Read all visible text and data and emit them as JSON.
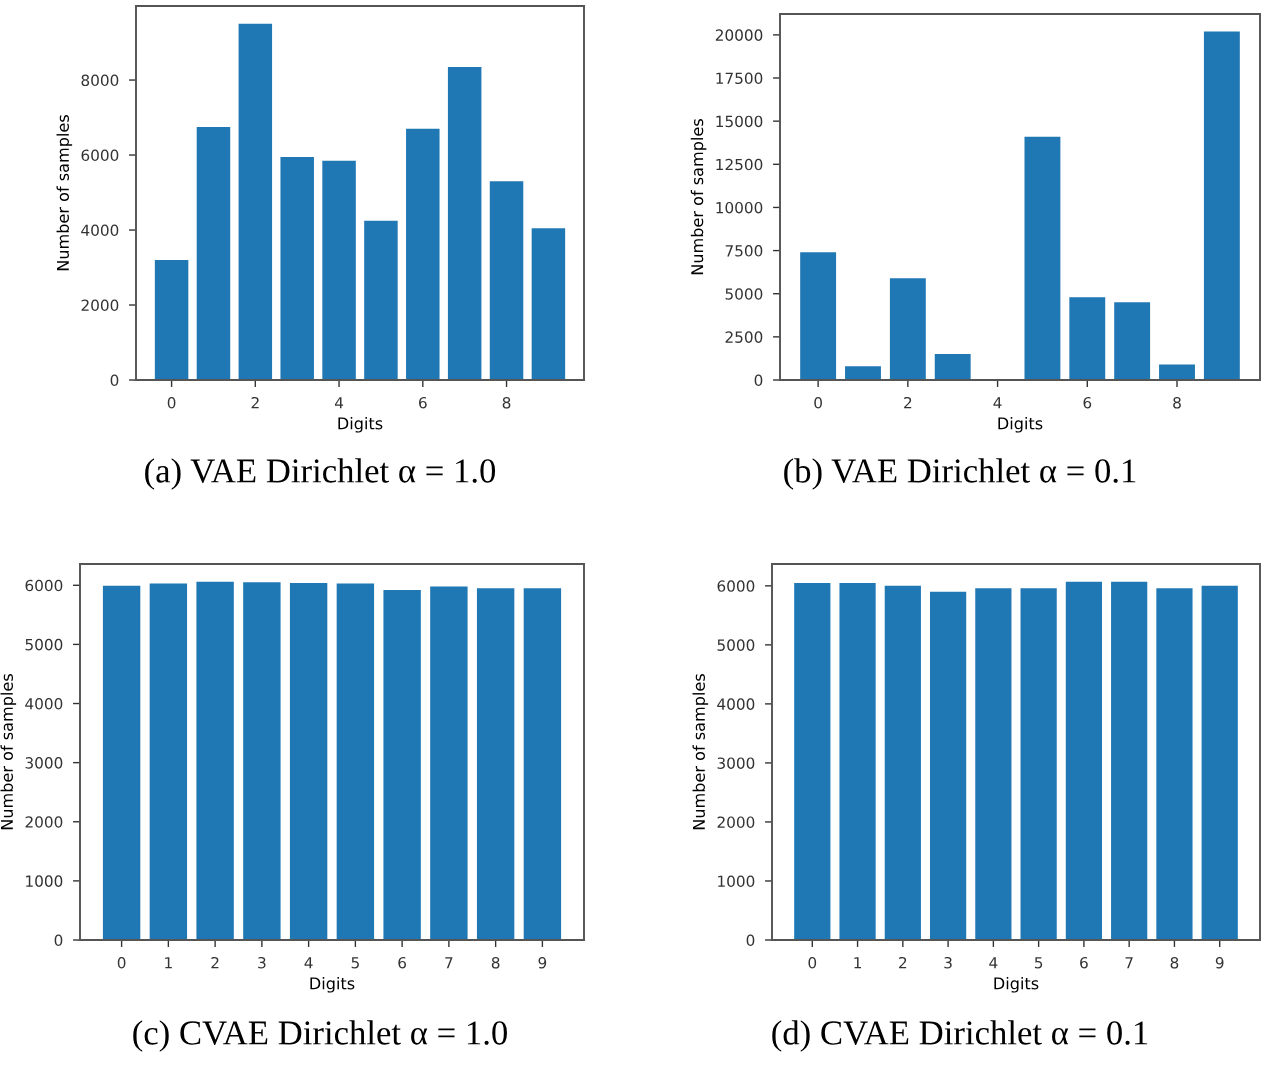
{
  "chart_data": [
    {
      "type": "bar",
      "xlabel": "Digits",
      "ylabel": "Number of samples",
      "annotations": [
        "(a) VAE Dirichlet α = 1.0"
      ],
      "x": [
        0,
        1,
        2,
        3,
        4,
        5,
        6,
        7,
        8,
        9
      ],
      "values": [
        3200,
        6750,
        9500,
        5950,
        5850,
        4250,
        6700,
        8350,
        5300,
        4050
      ],
      "color": "#1f77b4",
      "xlim": [
        -0.85,
        9.85
      ],
      "xticks": [
        0,
        2,
        4,
        6,
        8
      ],
      "ylim": [
        0,
        9975
      ],
      "yticks": [
        0,
        2000,
        4000,
        6000,
        8000
      ],
      "grid": false
    },
    {
      "type": "bar",
      "xlabel": "Digits",
      "ylabel": "Number of samples",
      "annotations": [
        "(b) VAE Dirichlet α = 0.1"
      ],
      "x": [
        0,
        1,
        2,
        3,
        4,
        5,
        6,
        7,
        8,
        9
      ],
      "values": [
        7400,
        800,
        5900,
        1500,
        0,
        14100,
        4800,
        4500,
        900,
        20200
      ],
      "color": "#1f77b4",
      "xlim": [
        -0.85,
        9.85
      ],
      "xticks": [
        0,
        2,
        4,
        6,
        8
      ],
      "ylim": [
        0,
        21210
      ],
      "yticks": [
        0,
        2500,
        5000,
        7500,
        10000,
        12500,
        15000,
        17500,
        20000
      ],
      "grid": false
    },
    {
      "type": "bar",
      "xlabel": "Digits",
      "ylabel": "Number of samples",
      "annotations": [
        "(c) CVAE Dirichlet α = 1.0"
      ],
      "categories": [
        "0",
        "1",
        "2",
        "3",
        "4",
        "5",
        "6",
        "7",
        "8",
        "9"
      ],
      "values": [
        5990,
        6030,
        6060,
        6050,
        6040,
        6030,
        5920,
        5980,
        5950,
        5950
      ],
      "color": "#1f77b4",
      "ylim": [
        0,
        6360
      ],
      "yticks": [
        0,
        1000,
        2000,
        3000,
        4000,
        5000,
        6000
      ],
      "grid": false
    },
    {
      "type": "bar",
      "xlabel": "Digits",
      "ylabel": "Number of samples",
      "annotations": [
        "(d) CVAE Dirichlet α = 0.1"
      ],
      "categories": [
        "0",
        "1",
        "2",
        "3",
        "4",
        "5",
        "6",
        "7",
        "8",
        "9"
      ],
      "values": [
        6050,
        6050,
        6000,
        5900,
        5960,
        5960,
        6070,
        6070,
        5960,
        6000
      ],
      "color": "#1f77b4",
      "ylim": [
        0,
        6370
      ],
      "yticks": [
        0,
        1000,
        2000,
        3000,
        4000,
        5000,
        6000
      ],
      "grid": false
    }
  ]
}
